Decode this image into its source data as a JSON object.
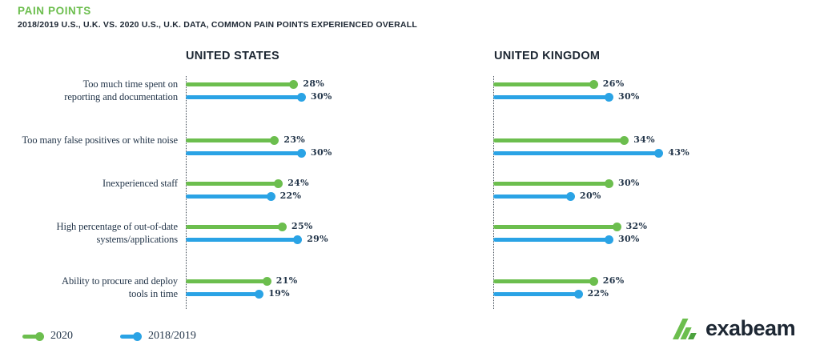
{
  "page": {
    "title": "PAIN POINTS",
    "subtitle": "2018/2019 U.S., U.K. VS. 2020 U.S., U.K. DATA, COMMON PAIN POINTS EXPERIENCED OVERALL"
  },
  "colors": {
    "green": "#6CBE4E",
    "green_dark": "#4CA23E",
    "blue": "#2AA3E5",
    "text_navy": "#24364A",
    "heading_navy": "#1D2733"
  },
  "legend": {
    "items": [
      {
        "label": "2020",
        "color_key": "green"
      },
      {
        "label": "2018/2019",
        "color_key": "blue"
      }
    ],
    "position": "bottom-left"
  },
  "logo": {
    "text": "exabeam",
    "mark": "exabeam-triple-slash-mark"
  },
  "chart_data": {
    "type": "bar",
    "variant": "horizontal-lollipop",
    "value_suffix": "%",
    "xlim": [
      0,
      45
    ],
    "grid": false,
    "categories": [
      [
        "Too much time spent on",
        "reporting and documentation"
      ],
      [
        "Too many false positives or white noise"
      ],
      [
        "Inexperienced staff"
      ],
      [
        "High percentage of out-of-date",
        "systems/applications"
      ],
      [
        "Ability to procure and deploy",
        "tools in time"
      ]
    ],
    "series_names": [
      "2020",
      "2018/2019"
    ],
    "charts": [
      {
        "title": "UNITED STATES",
        "series": [
          {
            "name": "2020",
            "values": [
              28,
              23,
              24,
              25,
              21
            ]
          },
          {
            "name": "2018/2019",
            "values": [
              30,
              30,
              22,
              29,
              19
            ]
          }
        ]
      },
      {
        "title": "UNITED KINGDOM",
        "series": [
          {
            "name": "2020",
            "values": [
              26,
              34,
              30,
              32,
              26
            ]
          },
          {
            "name": "2018/2019",
            "values": [
              30,
              43,
              20,
              30,
              22
            ]
          }
        ]
      }
    ]
  }
}
